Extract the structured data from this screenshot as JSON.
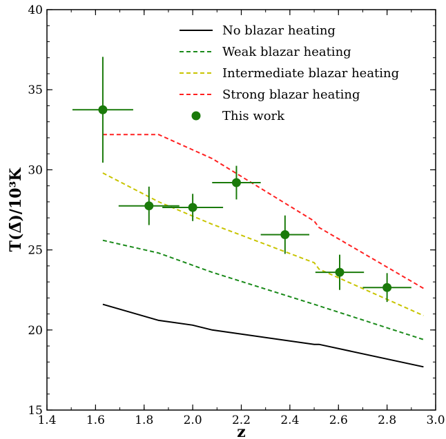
{
  "chart_data": {
    "type": "line",
    "xlabel": "z",
    "ylabel": "T(Δ̄)/10³K",
    "xlim": [
      1.4,
      3.0
    ],
    "ylim": [
      15,
      40
    ],
    "x_ticks": [
      "1.4",
      "1.6",
      "1.8",
      "2.0",
      "2.2",
      "2.4",
      "2.6",
      "2.8",
      "3.0"
    ],
    "y_ticks": [
      "15",
      "20",
      "25",
      "30",
      "35",
      "40"
    ],
    "grid": false,
    "legend_position": "top-right",
    "series": [
      {
        "name": "No blazar heating",
        "style": "solid",
        "color": "#000000",
        "x": [
          1.63,
          1.86,
          2.0,
          2.08,
          2.5,
          2.52,
          2.95
        ],
        "y": [
          21.6,
          20.6,
          20.3,
          20.0,
          19.1,
          19.1,
          17.7
        ]
      },
      {
        "name": "Weak blazar heating",
        "style": "dashed",
        "color": "#1a8a1a",
        "x": [
          1.63,
          1.86,
          2.08,
          2.5,
          2.95
        ],
        "y": [
          25.6,
          24.8,
          23.6,
          21.6,
          19.4
        ]
      },
      {
        "name": "Intermediate blazar heating",
        "style": "dashed",
        "color": "#c8c400",
        "x": [
          1.63,
          1.86,
          2.08,
          2.5,
          2.52,
          2.95
        ],
        "y": [
          29.8,
          28.0,
          26.6,
          24.2,
          23.8,
          20.9
        ]
      },
      {
        "name": "Strong blazar heating",
        "style": "dashed",
        "color": "#ff2020",
        "x": [
          1.63,
          1.86,
          2.08,
          2.5,
          2.52,
          2.95
        ],
        "y": [
          32.2,
          32.2,
          30.7,
          26.8,
          26.4,
          22.6
        ]
      },
      {
        "name": "This work",
        "style": "points",
        "color": "#1a7a0a",
        "points": [
          {
            "x": 1.63,
            "y": 33.75,
            "xerr": 0.125,
            "yerr": 3.3
          },
          {
            "x": 1.82,
            "y": 27.75,
            "xerr": 0.125,
            "yerr": 1.2
          },
          {
            "x": 2.0,
            "y": 27.65,
            "xerr": 0.125,
            "yerr": 0.85
          },
          {
            "x": 2.18,
            "y": 29.2,
            "xerr": 0.1,
            "yerr": 1.05
          },
          {
            "x": 2.38,
            "y": 25.95,
            "xerr": 0.1,
            "yerr": 1.2
          },
          {
            "x": 2.605,
            "y": 23.6,
            "xerr": 0.1,
            "yerr": 1.1
          },
          {
            "x": 2.8,
            "y": 22.65,
            "xerr": 0.1,
            "yerr": 0.9
          }
        ]
      }
    ]
  }
}
